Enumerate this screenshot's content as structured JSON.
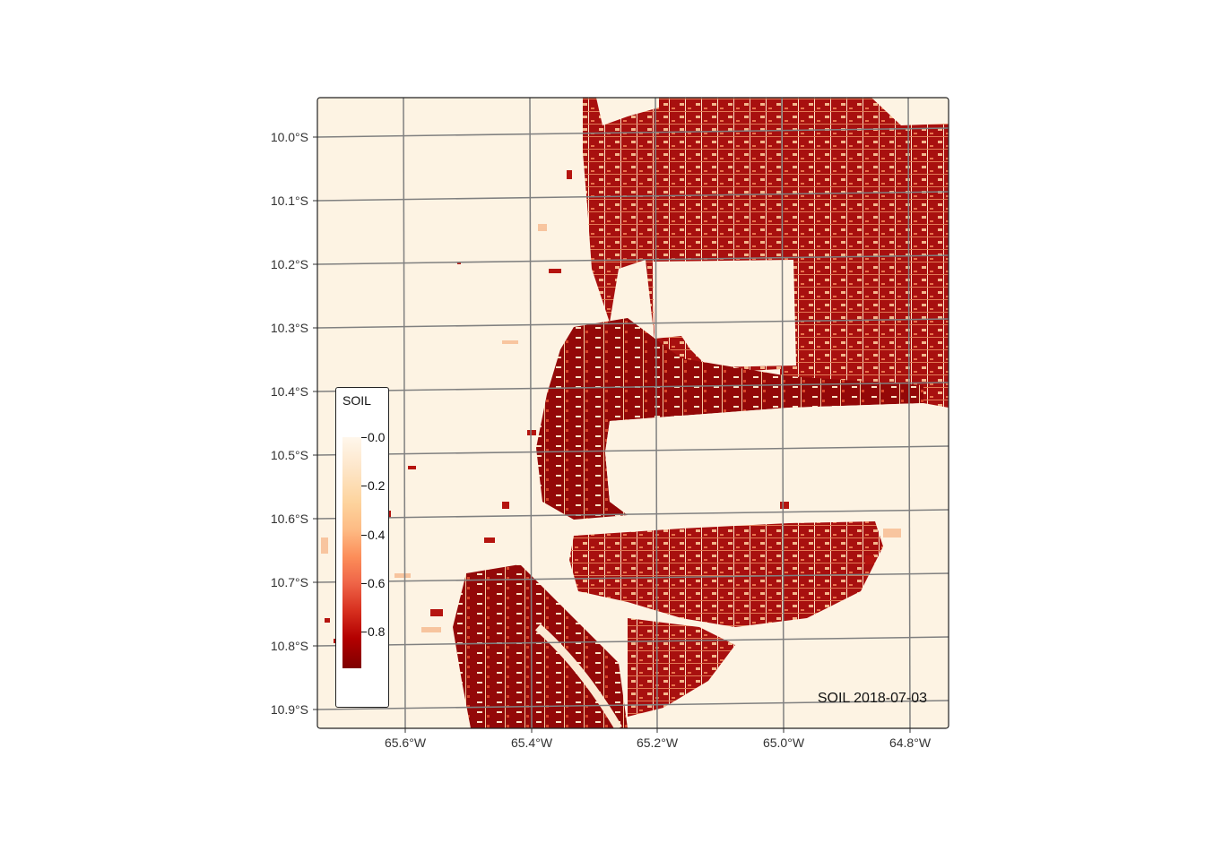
{
  "map": {
    "product": "SOIL",
    "caption": "SOIL 2018-07-03",
    "latitude_ticks": [
      "10.0°S",
      "10.1°S",
      "10.2°S",
      "10.3°S",
      "10.4°S",
      "10.5°S",
      "10.6°S",
      "10.7°S",
      "10.8°S",
      "10.9°S"
    ],
    "longitude_ticks": [
      "65.6°W",
      "65.4°W",
      "65.2°W",
      "65.0°W",
      "64.8°W"
    ],
    "grid": true
  },
  "legend": {
    "title": "SOIL",
    "scale_min": 0.0,
    "scale_max": 0.95,
    "ticks": [
      {
        "value": 0.0,
        "label": "0.0"
      },
      {
        "value": 0.2,
        "label": "0.2"
      },
      {
        "value": 0.4,
        "label": "0.4"
      },
      {
        "value": 0.6,
        "label": "0.6"
      },
      {
        "value": 0.8,
        "label": "0.8"
      }
    ],
    "palette": [
      "#fff7ec",
      "#fde5c7",
      "#fdd49e",
      "#fdbb84",
      "#fc8d59",
      "#ef6548",
      "#d7301f",
      "#b30000",
      "#7f0000"
    ]
  },
  "colors": {
    "background_tile": "#fdf3e3",
    "grid": "#808080",
    "frame": "#222222",
    "high_soil": "#9e0a0a",
    "mid_soil": "#d2381f"
  }
}
